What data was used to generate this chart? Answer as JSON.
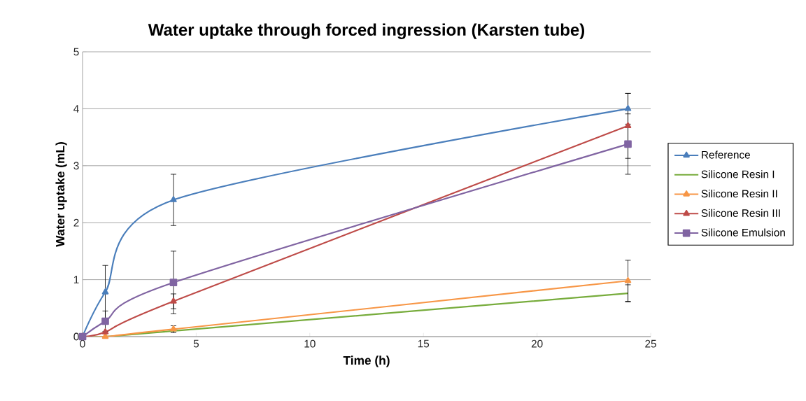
{
  "chart_data": {
    "type": "line",
    "title": "Water uptake through forced ingression (Karsten tube)",
    "xlabel": "Time (h)",
    "ylabel": "Water uptake (mL)",
    "x": [
      0,
      1,
      4,
      24
    ],
    "xlim": [
      0,
      25
    ],
    "xticks": [
      0,
      5,
      10,
      15,
      20,
      25
    ],
    "ylim": [
      0,
      5
    ],
    "yticks": [
      0,
      1,
      2,
      3,
      4,
      5
    ],
    "grid": "y",
    "legend": "right",
    "series": [
      {
        "name": "Reference",
        "color": "#4a7ebb",
        "marker": "triangle",
        "values": [
          0,
          0.78,
          2.4,
          4.0
        ],
        "errors": [
          null,
          0.47,
          0.45,
          0.27
        ]
      },
      {
        "name": "Silicone Resin I",
        "color": "#77ac3c",
        "marker": "none",
        "values": [
          0,
          0,
          0.1,
          0.76
        ],
        "errors": [
          null,
          null,
          null,
          0.15
        ]
      },
      {
        "name": "Silicone Resin II",
        "color": "#f79646",
        "marker": "triangle",
        "values": [
          0,
          0,
          0.13,
          0.98
        ],
        "errors": [
          null,
          null,
          0.06,
          0.36
        ]
      },
      {
        "name": "Silicone Resin III",
        "color": "#be4b48",
        "marker": "triangle",
        "values": [
          0,
          0.08,
          0.62,
          3.7
        ],
        "errors": [
          null,
          null,
          0.13,
          0.57
        ]
      },
      {
        "name": "Silicone Emulsion",
        "color": "#8064a2",
        "marker": "square",
        "values": [
          0,
          0.27,
          0.95,
          3.38
        ],
        "errors": [
          null,
          0.18,
          0.55,
          0.53
        ]
      }
    ]
  }
}
